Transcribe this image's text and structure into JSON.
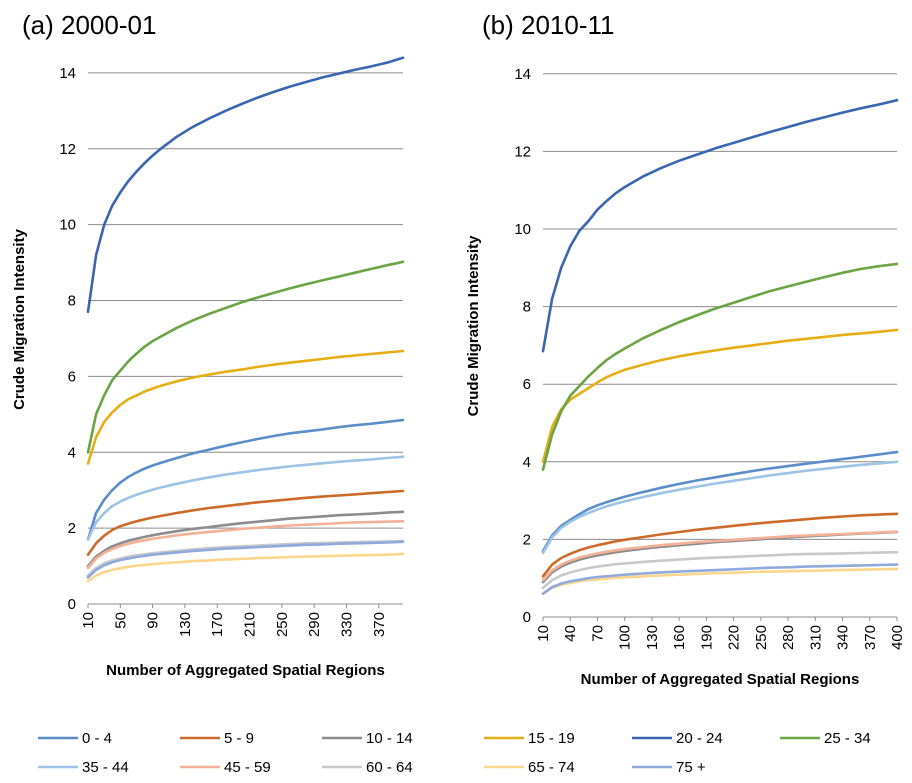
{
  "chart_data": [
    {
      "type": "line",
      "title": "(a) 2000-01",
      "xlabel": "Number of Aggregated Spatial Regions",
      "ylabel": "Crude Migration Intensity",
      "ylim": [
        0,
        15
      ],
      "yticks": [
        0,
        2,
        4,
        6,
        8,
        10,
        12,
        14
      ],
      "xlim": [
        10,
        400
      ],
      "xticks": [
        10,
        50,
        90,
        130,
        170,
        210,
        250,
        290,
        330,
        370
      ],
      "grid": true,
      "x": [
        10,
        20,
        30,
        40,
        50,
        60,
        70,
        80,
        90,
        100,
        120,
        140,
        160,
        180,
        200,
        220,
        240,
        260,
        280,
        300,
        320,
        340,
        360,
        380,
        400
      ],
      "series": [
        {
          "name": "0 - 4",
          "values": [
            1.7,
            2.4,
            2.75,
            3.0,
            3.2,
            3.35,
            3.47,
            3.57,
            3.65,
            3.72,
            3.85,
            3.97,
            4.07,
            4.17,
            4.26,
            4.35,
            4.43,
            4.5,
            4.55,
            4.6,
            4.66,
            4.71,
            4.75,
            4.8,
            4.85
          ]
        },
        {
          "name": "5 - 9",
          "values": [
            1.3,
            1.6,
            1.8,
            1.95,
            2.05,
            2.12,
            2.18,
            2.23,
            2.28,
            2.32,
            2.4,
            2.47,
            2.53,
            2.58,
            2.63,
            2.68,
            2.72,
            2.76,
            2.8,
            2.83,
            2.86,
            2.89,
            2.92,
            2.95,
            2.98
          ]
        },
        {
          "name": "10 - 14",
          "values": [
            1.0,
            1.25,
            1.4,
            1.52,
            1.6,
            1.67,
            1.72,
            1.77,
            1.81,
            1.85,
            1.92,
            1.98,
            2.03,
            2.08,
            2.13,
            2.17,
            2.21,
            2.25,
            2.28,
            2.31,
            2.34,
            2.36,
            2.38,
            2.41,
            2.43
          ]
        },
        {
          "name": "15 - 19",
          "values": [
            3.7,
            4.4,
            4.8,
            5.05,
            5.25,
            5.4,
            5.5,
            5.6,
            5.68,
            5.75,
            5.87,
            5.97,
            6.05,
            6.12,
            6.18,
            6.25,
            6.31,
            6.36,
            6.41,
            6.46,
            6.51,
            6.55,
            6.59,
            6.63,
            6.67
          ]
        },
        {
          "name": "20 - 24",
          "values": [
            7.7,
            9.2,
            10.0,
            10.5,
            10.85,
            11.15,
            11.4,
            11.62,
            11.82,
            12.0,
            12.32,
            12.58,
            12.8,
            13.0,
            13.18,
            13.35,
            13.5,
            13.64,
            13.76,
            13.88,
            13.98,
            14.08,
            14.17,
            14.27,
            14.4
          ]
        },
        {
          "name": "25 - 34",
          "values": [
            4.0,
            5.0,
            5.5,
            5.9,
            6.15,
            6.4,
            6.6,
            6.78,
            6.93,
            7.05,
            7.28,
            7.48,
            7.65,
            7.8,
            7.95,
            8.08,
            8.2,
            8.32,
            8.43,
            8.53,
            8.63,
            8.73,
            8.83,
            8.93,
            9.02
          ]
        },
        {
          "name": "35 - 44",
          "values": [
            1.7,
            2.15,
            2.4,
            2.58,
            2.7,
            2.8,
            2.88,
            2.95,
            3.01,
            3.07,
            3.17,
            3.26,
            3.34,
            3.41,
            3.47,
            3.53,
            3.58,
            3.63,
            3.67,
            3.71,
            3.75,
            3.78,
            3.81,
            3.85,
            3.88
          ]
        },
        {
          "name": "45 - 59",
          "values": [
            0.95,
            1.2,
            1.35,
            1.45,
            1.53,
            1.59,
            1.64,
            1.68,
            1.72,
            1.75,
            1.81,
            1.86,
            1.9,
            1.94,
            1.98,
            2.01,
            2.04,
            2.07,
            2.09,
            2.11,
            2.13,
            2.15,
            2.16,
            2.17,
            2.18
          ]
        },
        {
          "name": "60 - 64",
          "values": [
            0.75,
            0.95,
            1.07,
            1.15,
            1.2,
            1.25,
            1.28,
            1.31,
            1.34,
            1.36,
            1.4,
            1.44,
            1.47,
            1.5,
            1.52,
            1.54,
            1.56,
            1.58,
            1.6,
            1.61,
            1.62,
            1.63,
            1.64,
            1.65,
            1.66
          ]
        },
        {
          "name": "65 - 74",
          "values": [
            0.6,
            0.75,
            0.84,
            0.9,
            0.94,
            0.98,
            1.01,
            1.03,
            1.05,
            1.07,
            1.1,
            1.13,
            1.15,
            1.17,
            1.19,
            1.21,
            1.22,
            1.24,
            1.25,
            1.26,
            1.27,
            1.28,
            1.29,
            1.3,
            1.32
          ]
        },
        {
          "name": "75 +",
          "values": [
            0.7,
            0.9,
            1.02,
            1.1,
            1.16,
            1.2,
            1.24,
            1.27,
            1.3,
            1.32,
            1.36,
            1.4,
            1.43,
            1.46,
            1.48,
            1.5,
            1.52,
            1.54,
            1.56,
            1.57,
            1.59,
            1.6,
            1.61,
            1.62,
            1.64
          ]
        }
      ]
    },
    {
      "type": "line",
      "title": "(b) 2010-11",
      "xlabel": "Number of Aggregated Spatial Regions",
      "ylabel": "Crude Migration Intensity",
      "ylim": [
        0,
        15
      ],
      "yticks": [
        0,
        2,
        4,
        6,
        8,
        10,
        12,
        14
      ],
      "xlim": [
        10,
        400
      ],
      "xticks": [
        10,
        40,
        70,
        100,
        130,
        160,
        190,
        220,
        250,
        280,
        310,
        340,
        370,
        400
      ],
      "grid": true,
      "x": [
        10,
        20,
        30,
        40,
        50,
        60,
        70,
        80,
        90,
        100,
        120,
        140,
        160,
        180,
        200,
        220,
        240,
        260,
        280,
        300,
        320,
        340,
        360,
        380,
        400
      ],
      "series": [
        {
          "name": "0 - 4",
          "values": [
            1.7,
            2.1,
            2.35,
            2.5,
            2.65,
            2.78,
            2.88,
            2.96,
            3.03,
            3.1,
            3.22,
            3.33,
            3.43,
            3.52,
            3.6,
            3.68,
            3.76,
            3.83,
            3.89,
            3.95,
            4.01,
            4.07,
            4.13,
            4.19,
            4.25
          ]
        },
        {
          "name": "5 - 9",
          "values": [
            1.05,
            1.35,
            1.52,
            1.63,
            1.72,
            1.79,
            1.85,
            1.9,
            1.95,
            1.99,
            2.06,
            2.13,
            2.19,
            2.25,
            2.3,
            2.35,
            2.4,
            2.44,
            2.48,
            2.52,
            2.56,
            2.59,
            2.62,
            2.64,
            2.66
          ]
        },
        {
          "name": "10 - 14",
          "values": [
            0.9,
            1.15,
            1.3,
            1.4,
            1.48,
            1.54,
            1.59,
            1.63,
            1.67,
            1.7,
            1.76,
            1.81,
            1.85,
            1.89,
            1.93,
            1.96,
            1.99,
            2.02,
            2.05,
            2.08,
            2.1,
            2.13,
            2.15,
            2.17,
            2.19
          ]
        },
        {
          "name": "15 - 19",
          "values": [
            4.0,
            4.9,
            5.35,
            5.6,
            5.75,
            5.9,
            6.05,
            6.18,
            6.28,
            6.37,
            6.5,
            6.62,
            6.72,
            6.8,
            6.87,
            6.94,
            7.0,
            7.06,
            7.12,
            7.17,
            7.22,
            7.27,
            7.31,
            7.35,
            7.4
          ]
        },
        {
          "name": "20 - 24",
          "values": [
            6.85,
            8.2,
            9.0,
            9.55,
            9.95,
            10.2,
            10.5,
            10.72,
            10.92,
            11.08,
            11.35,
            11.57,
            11.76,
            11.92,
            12.08,
            12.22,
            12.36,
            12.5,
            12.63,
            12.76,
            12.88,
            13.0,
            13.11,
            13.21,
            13.32
          ]
        },
        {
          "name": "25 - 34",
          "values": [
            3.8,
            4.7,
            5.3,
            5.7,
            5.95,
            6.2,
            6.42,
            6.62,
            6.78,
            6.92,
            7.18,
            7.4,
            7.6,
            7.78,
            7.95,
            8.1,
            8.25,
            8.4,
            8.52,
            8.64,
            8.76,
            8.87,
            8.97,
            9.04,
            9.1
          ]
        },
        {
          "name": "35 - 44",
          "values": [
            1.65,
            2.05,
            2.3,
            2.45,
            2.58,
            2.68,
            2.77,
            2.85,
            2.92,
            2.98,
            3.09,
            3.19,
            3.28,
            3.36,
            3.44,
            3.51,
            3.58,
            3.65,
            3.71,
            3.77,
            3.82,
            3.87,
            3.92,
            3.96,
            4.0
          ]
        },
        {
          "name": "45 - 59",
          "values": [
            0.95,
            1.2,
            1.35,
            1.45,
            1.53,
            1.59,
            1.64,
            1.68,
            1.72,
            1.75,
            1.8,
            1.85,
            1.89,
            1.93,
            1.96,
            1.99,
            2.02,
            2.05,
            2.08,
            2.1,
            2.12,
            2.14,
            2.16,
            2.18,
            2.2
          ]
        },
        {
          "name": "60 - 64",
          "values": [
            0.75,
            0.95,
            1.07,
            1.15,
            1.21,
            1.26,
            1.3,
            1.33,
            1.36,
            1.38,
            1.42,
            1.45,
            1.48,
            1.51,
            1.53,
            1.55,
            1.57,
            1.59,
            1.61,
            1.62,
            1.63,
            1.64,
            1.65,
            1.66,
            1.67
          ]
        },
        {
          "name": "65 - 74",
          "values": [
            0.6,
            0.75,
            0.83,
            0.88,
            0.92,
            0.95,
            0.97,
            0.99,
            1.01,
            1.02,
            1.05,
            1.07,
            1.09,
            1.11,
            1.13,
            1.14,
            1.16,
            1.17,
            1.18,
            1.19,
            1.2,
            1.21,
            1.22,
            1.23,
            1.24
          ]
        },
        {
          "name": "75 +",
          "values": [
            0.6,
            0.77,
            0.86,
            0.92,
            0.96,
            1.0,
            1.03,
            1.05,
            1.07,
            1.09,
            1.12,
            1.15,
            1.17,
            1.19,
            1.21,
            1.23,
            1.25,
            1.27,
            1.28,
            1.3,
            1.31,
            1.32,
            1.33,
            1.34,
            1.35
          ]
        }
      ]
    }
  ],
  "legend": {
    "items": [
      {
        "label": "0 - 4",
        "color": "#5B8EC9"
      },
      {
        "label": "5 - 9",
        "color": "#CC6A2A"
      },
      {
        "label": "10 - 14",
        "color": "#8C8C8C"
      },
      {
        "label": "15 - 19",
        "color": "#E6AE14"
      },
      {
        "label": "20 - 24",
        "color": "#3A65B0"
      },
      {
        "label": "25 - 34",
        "color": "#6AA443"
      },
      {
        "label": "35 - 44",
        "color": "#9DC3E6"
      },
      {
        "label": "45 - 59",
        "color": "#F4B196"
      },
      {
        "label": "60 - 64",
        "color": "#C8C8C8"
      },
      {
        "label": "65 - 74",
        "color": "#FCD68A"
      },
      {
        "label": "75 +",
        "color": "#8EA9DB"
      }
    ]
  }
}
